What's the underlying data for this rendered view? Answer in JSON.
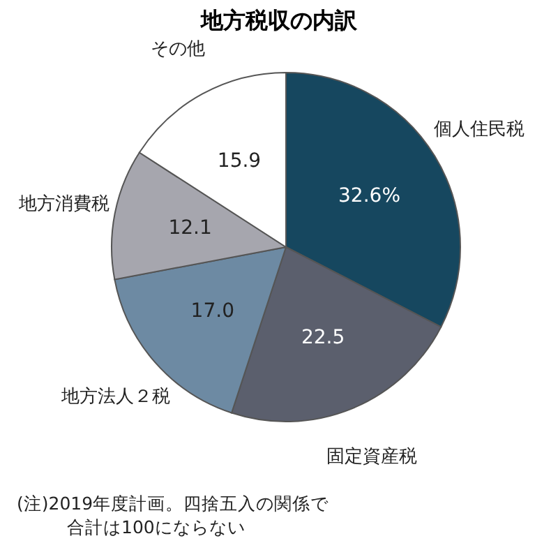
{
  "chart_data": {
    "type": "pie",
    "title": "地方税収の内訳",
    "categories": [
      "個人住民税",
      "固定資産税",
      "地方法人２税",
      "地方消費税",
      "その他"
    ],
    "values": [
      32.6,
      22.5,
      17.0,
      12.1,
      15.9
    ],
    "value_labels": [
      "32.6%",
      "22.5",
      "17.0",
      "12.1",
      "15.9"
    ],
    "colors": [
      "#16475f",
      "#5b5f6d",
      "#6d8aa3",
      "#a6a6ae",
      "#ffffff"
    ],
    "annotations": [
      "(注)2019年度計画。四捨五入の関係で",
      "合計は100にならない"
    ]
  }
}
